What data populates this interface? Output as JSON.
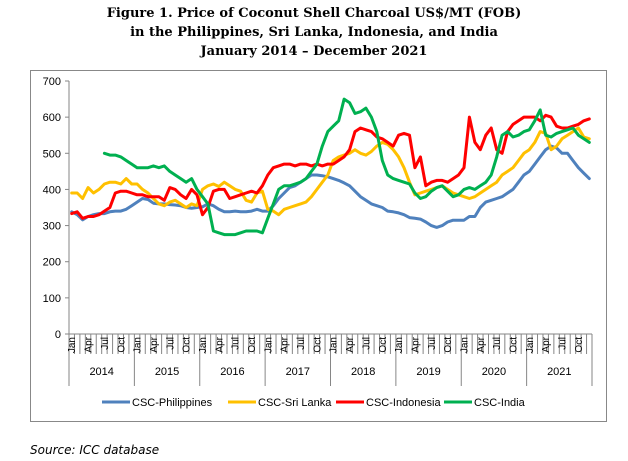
{
  "title": {
    "line1": "Figure 1. Price of Coconut Shell Charcoal US$/MT (FOB)",
    "line2": "in the Philippines, Sri Lanka, Indonesia, and India",
    "line3": "January 2014 – December 2021"
  },
  "source": "Source: ICC database",
  "chart_data": {
    "type": "line",
    "title": "Figure 1. Price of Coconut Shell Charcoal US$/MT (FOB) in the Philippines, Sri Lanka, Indonesia, and India January 2014 – December 2021",
    "xlabel": "",
    "ylabel": "",
    "ylim": [
      0,
      700
    ],
    "yticks": [
      "0",
      "100",
      "200",
      "300",
      "400",
      "500",
      "600",
      "700"
    ],
    "years": [
      "2014",
      "2015",
      "2016",
      "2017",
      "2018",
      "2019",
      "2020",
      "2021"
    ],
    "month_ticks": [
      "Jan",
      "Apr",
      "Jul",
      "Oct"
    ],
    "grid": false,
    "legend": "bottom",
    "series": [
      {
        "name": "CSC-Philippines",
        "color": "#4F81BD",
        "values": [
          338,
          330,
          316,
          325,
          330,
          333,
          333,
          338,
          340,
          340,
          345,
          355,
          365,
          375,
          372,
          362,
          360,
          360,
          358,
          357,
          355,
          350,
          348,
          350,
          352,
          360,
          355,
          345,
          338,
          338,
          340,
          338,
          338,
          340,
          345,
          340,
          340,
          355,
          375,
          390,
          405,
          410,
          420,
          430,
          440,
          440,
          438,
          435,
          430,
          425,
          418,
          410,
          395,
          380,
          370,
          360,
          355,
          350,
          340,
          338,
          335,
          330,
          322,
          320,
          318,
          310,
          300,
          295,
          300,
          310,
          315,
          315,
          315,
          325,
          325,
          350,
          365,
          370,
          375,
          380,
          390,
          400,
          420,
          440,
          450,
          470,
          490,
          510,
          520,
          515,
          500,
          500,
          480,
          460,
          445,
          430
        ]
      },
      {
        "name": "CSC-Sri Lanka",
        "color": "#FFC000",
        "values": [
          390,
          390,
          375,
          405,
          390,
          400,
          415,
          420,
          420,
          415,
          430,
          415,
          415,
          400,
          390,
          375,
          360,
          355,
          365,
          370,
          360,
          350,
          360,
          355,
          400,
          410,
          415,
          408,
          420,
          410,
          400,
          395,
          370,
          365,
          390,
          395,
          345,
          340,
          330,
          345,
          350,
          355,
          360,
          365,
          380,
          400,
          420,
          440,
          480,
          490,
          495,
          500,
          510,
          500,
          495,
          505,
          520,
          530,
          525,
          510,
          490,
          460,
          420,
          385,
          390,
          395,
          400,
          405,
          410,
          400,
          390,
          385,
          380,
          375,
          380,
          390,
          400,
          410,
          420,
          440,
          450,
          460,
          480,
          500,
          510,
          530,
          560,
          555,
          510,
          520,
          540,
          550,
          560,
          570,
          545,
          540
        ]
      },
      {
        "name": "CSC-Indonesia",
        "color": "#FF0000",
        "values": [
          333,
          338,
          320,
          325,
          325,
          330,
          340,
          350,
          390,
          395,
          395,
          390,
          385,
          385,
          380,
          380,
          380,
          370,
          405,
          400,
          385,
          375,
          400,
          385,
          330,
          350,
          395,
          400,
          400,
          375,
          380,
          385,
          390,
          395,
          390,
          410,
          440,
          460,
          465,
          470,
          470,
          465,
          470,
          470,
          465,
          470,
          465,
          470,
          470,
          480,
          490,
          510,
          560,
          570,
          565,
          560,
          545,
          540,
          530,
          520,
          550,
          555,
          550,
          460,
          490,
          410,
          420,
          425,
          425,
          420,
          430,
          440,
          460,
          600,
          530,
          510,
          550,
          570,
          510,
          500,
          560,
          580,
          590,
          600,
          600,
          600,
          590,
          605,
          600,
          575,
          570,
          570,
          575,
          580,
          590,
          595
        ]
      },
      {
        "name": "CSC-India",
        "color": "#00B050",
        "values": [
          null,
          null,
          null,
          null,
          null,
          null,
          500,
          495,
          495,
          490,
          480,
          470,
          460,
          460,
          460,
          465,
          460,
          465,
          450,
          440,
          430,
          420,
          430,
          400,
          380,
          360,
          285,
          280,
          275,
          275,
          275,
          280,
          285,
          285,
          285,
          280,
          320,
          360,
          400,
          410,
          410,
          415,
          420,
          430,
          450,
          470,
          520,
          560,
          575,
          590,
          650,
          640,
          610,
          615,
          625,
          600,
          560,
          480,
          440,
          430,
          425,
          420,
          415,
          390,
          375,
          380,
          395,
          405,
          410,
          395,
          380,
          385,
          400,
          405,
          400,
          410,
          420,
          440,
          490,
          550,
          560,
          545,
          550,
          560,
          565,
          590,
          620,
          550,
          545,
          555,
          560,
          565,
          570,
          550,
          540,
          530
        ]
      }
    ]
  }
}
